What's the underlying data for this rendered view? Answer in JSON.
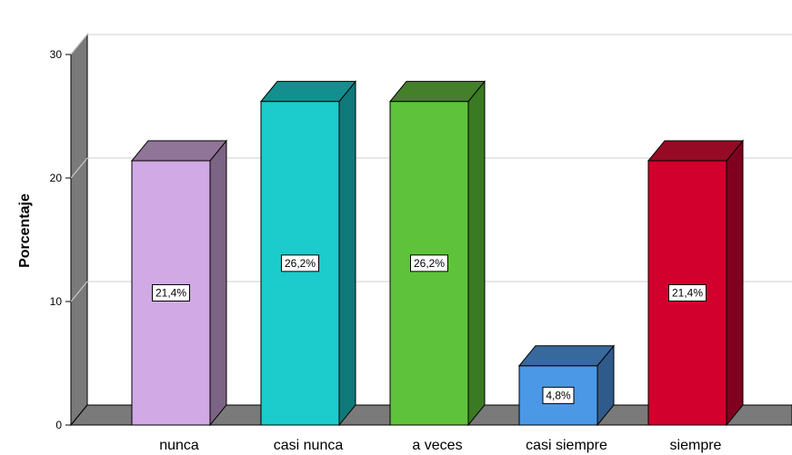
{
  "chart_data": {
    "type": "bar",
    "title": "",
    "xlabel": "",
    "ylabel": "Porcentaje",
    "ylim": [
      0,
      30
    ],
    "yticks": [
      0,
      10,
      20,
      30
    ],
    "grid": true,
    "style": "3d-bars",
    "categories": [
      "nunca",
      "casi nunca",
      "a veces",
      "casi siempre",
      "siempre"
    ],
    "values": [
      21.4,
      26.2,
      26.2,
      4.8,
      21.4
    ],
    "data_labels": [
      "21,4%",
      "26,2%",
      "26,2%",
      "4,8%",
      "21,4%"
    ],
    "colors": {
      "front": [
        "#d1a9e4",
        "#1ccbcb",
        "#5ec33a",
        "#4b98e7",
        "#d2002d"
      ],
      "side": [
        "#7c6484",
        "#0e7a7a",
        "#3a7a22",
        "#2f5a8c",
        "#800020"
      ],
      "top": [
        "#907598",
        "#148f8f",
        "#447f2a",
        "#38699c",
        "#950a25"
      ]
    }
  }
}
